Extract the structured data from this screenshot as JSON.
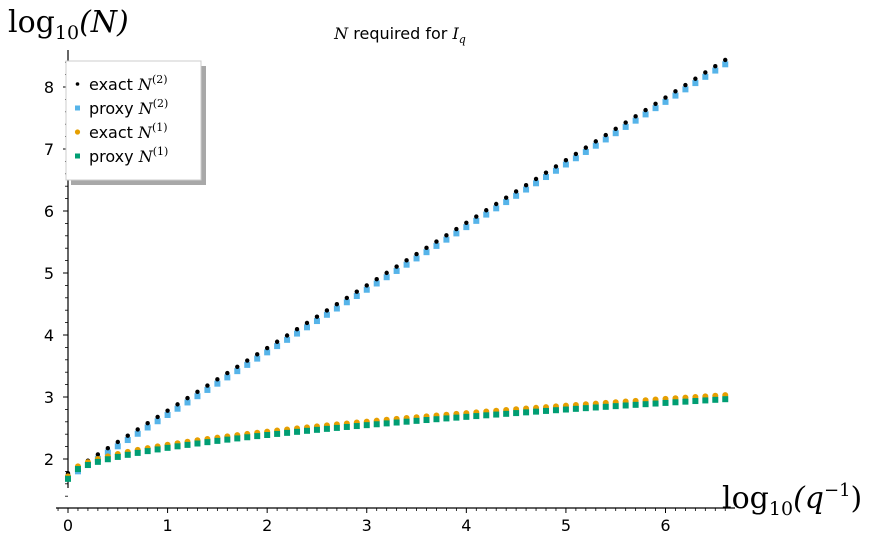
{
  "chart_data": {
    "type": "scatter",
    "title": {
      "symbol": "N",
      "text": " required for ",
      "symbol2": "I",
      "subscript": "q"
    },
    "xlabel": {
      "prefix": "log",
      "base": "10",
      "arg": "(q",
      "sup": "−1",
      "close": ")"
    },
    "ylabel": {
      "prefix": "log",
      "base": "10",
      "arg": "(N)"
    },
    "xlim": [
      -0.1,
      6.7
    ],
    "ylim": [
      1.25,
      8.6
    ],
    "x_ticks": [
      0,
      1,
      2,
      3,
      4,
      5,
      6
    ],
    "y_ticks": [
      2,
      3,
      4,
      5,
      6,
      7,
      8
    ],
    "x_tick_labels": [
      "0",
      "1",
      "2",
      "3",
      "4",
      "5",
      "6"
    ],
    "y_tick_labels": [
      "2",
      "3",
      "4",
      "5",
      "6",
      "7",
      "8"
    ],
    "grid": false,
    "legend_position": "top-left",
    "x": {
      "start": 0.0,
      "stop": 6.6,
      "step": 0.1
    },
    "series": [
      {
        "name": "exact N^(2)",
        "label": "exact ",
        "sym": "N",
        "sup": "(2)",
        "color": "#000000",
        "marker": "circle",
        "model": {
          "kind": "linear",
          "a": 1.77,
          "b": 1.01
        }
      },
      {
        "name": "proxy N^(2)",
        "label": "proxy ",
        "sym": "N",
        "sup": "(2)",
        "color": "#56b4e9",
        "marker": "square",
        "model": {
          "kind": "linear",
          "a": 1.7,
          "b": 1.01
        }
      },
      {
        "name": "exact N^(1)",
        "label": "exact ",
        "sym": "N",
        "sup": "(1)",
        "color": "#e69f00",
        "marker": "circle",
        "model": {
          "kind": "sqrt",
          "a": 1.72,
          "b": 0.51
        }
      },
      {
        "name": "proxy N^(1)",
        "label": "proxy ",
        "sym": "N",
        "sup": "(1)",
        "color": "#009e73",
        "marker": "square",
        "model": {
          "kind": "sqrt",
          "a": 1.68,
          "b": 0.5
        }
      }
    ]
  }
}
